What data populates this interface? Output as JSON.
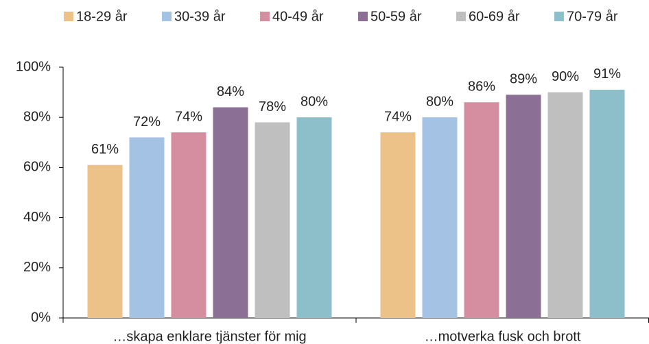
{
  "chart_data": {
    "type": "bar",
    "categories": [
      "…skapa enklare tjänster för mig",
      "…motverka fusk och brott"
    ],
    "series": [
      {
        "name": "18-29 år",
        "color": "#ecc288",
        "values": [
          61,
          74
        ],
        "value_labels": [
          "61%",
          "74%"
        ]
      },
      {
        "name": "30-39 år",
        "color": "#a4c2e4",
        "values": [
          72,
          80
        ],
        "value_labels": [
          "72%",
          "80%"
        ]
      },
      {
        "name": "40-49 år",
        "color": "#d48ea0",
        "values": [
          74,
          86
        ],
        "value_labels": [
          "74%",
          "86%"
        ]
      },
      {
        "name": "50-59 år",
        "color": "#8c6f94",
        "values": [
          84,
          89
        ],
        "value_labels": [
          "84%",
          "89%"
        ]
      },
      {
        "name": "60-69 år",
        "color": "#bfbfbf",
        "values": [
          78,
          90
        ],
        "value_labels": [
          "78%",
          "90%"
        ]
      },
      {
        "name": "70-79 år",
        "color": "#8cbfca",
        "values": [
          80,
          91
        ],
        "value_labels": [
          "80%",
          "91%"
        ]
      }
    ],
    "ylim": [
      0,
      100
    ],
    "yticks": [
      {
        "value": 0,
        "label": "0%"
      },
      {
        "value": 20,
        "label": "20%"
      },
      {
        "value": 40,
        "label": "40%"
      },
      {
        "value": 60,
        "label": "60%"
      },
      {
        "value": 80,
        "label": "80%"
      },
      {
        "value": 100,
        "label": "100%"
      }
    ],
    "legend": "top"
  }
}
